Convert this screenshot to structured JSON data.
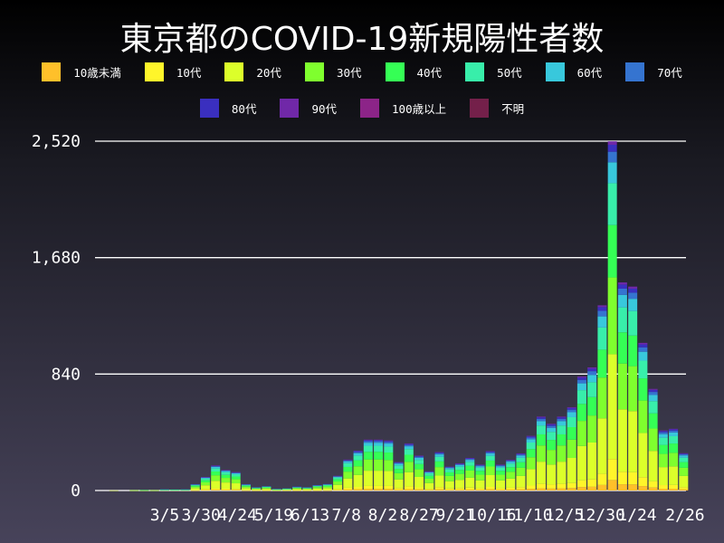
{
  "chart_data": {
    "type": "bar",
    "stacked": true,
    "title": "東京都のCOVID-19新規陽性者数",
    "xlabel": "",
    "ylabel": "",
    "ylim": [
      0,
      2520
    ],
    "y_ticks": [
      "0",
      "840",
      "1,680",
      "2,520"
    ],
    "y_tick_values": [
      0,
      840,
      1680,
      2520
    ],
    "x_tick_labels": [
      "3/5",
      "3/30",
      "4/24",
      "5/19",
      "6/13",
      "7/8",
      "8/2",
      "8/27",
      "9/21",
      "10/16",
      "11/10",
      "12/5",
      "12/30",
      "1/24",
      "2/26"
    ],
    "grid": true,
    "legend_position": "top",
    "x": [
      "2020-01-30",
      "2020-02-06",
      "2020-02-13",
      "2020-02-20",
      "2020-02-27",
      "2020-03-05",
      "2020-03-12",
      "2020-03-19",
      "2020-03-26",
      "2020-04-02",
      "2020-04-09",
      "2020-04-16",
      "2020-04-23",
      "2020-04-30",
      "2020-05-07",
      "2020-05-14",
      "2020-05-21",
      "2020-05-28",
      "2020-06-04",
      "2020-06-11",
      "2020-06-18",
      "2020-06-25",
      "2020-07-02",
      "2020-07-09",
      "2020-07-16",
      "2020-07-23",
      "2020-07-30",
      "2020-08-06",
      "2020-08-13",
      "2020-08-20",
      "2020-08-27",
      "2020-09-03",
      "2020-09-10",
      "2020-09-17",
      "2020-09-24",
      "2020-10-01",
      "2020-10-08",
      "2020-10-15",
      "2020-10-22",
      "2020-10-29",
      "2020-11-05",
      "2020-11-12",
      "2020-11-19",
      "2020-11-26",
      "2020-12-03",
      "2020-12-10",
      "2020-12-17",
      "2020-12-24",
      "2020-12-31",
      "2021-01-07",
      "2021-01-14",
      "2021-01-21",
      "2021-01-28",
      "2021-02-04",
      "2021-02-11",
      "2021-02-18",
      "2021-02-25"
    ],
    "series": [
      {
        "name": "10歳未満",
        "color": "#ffc02a",
        "values": [
          0,
          0,
          0,
          0,
          0,
          0,
          0,
          0,
          1,
          3,
          5,
          4,
          4,
          1,
          1,
          1,
          0,
          0,
          1,
          1,
          1,
          1,
          3,
          7,
          9,
          11,
          11,
          11,
          6,
          10,
          8,
          4,
          8,
          5,
          6,
          7,
          6,
          9,
          6,
          7,
          8,
          12,
          16,
          14,
          16,
          18,
          25,
          27,
          40,
          76,
          45,
          44,
          32,
          22,
          13,
          13,
          8
        ]
      },
      {
        "name": "10代",
        "color": "#fff52a",
        "values": [
          0,
          0,
          0,
          0,
          0,
          0,
          0,
          0,
          3,
          6,
          11,
          9,
          8,
          3,
          1,
          2,
          1,
          1,
          2,
          1,
          2,
          3,
          6,
          13,
          17,
          22,
          22,
          22,
          12,
          20,
          15,
          8,
          17,
          10,
          12,
          14,
          11,
          17,
          11,
          13,
          16,
          24,
          32,
          29,
          32,
          36,
          49,
          53,
          80,
          151,
          90,
          88,
          64,
          44,
          26,
          27,
          16
        ]
      },
      {
        "name": "20代",
        "color": "#dcff2a",
        "values": [
          1,
          0,
          1,
          1,
          1,
          2,
          2,
          2,
          14,
          29,
          54,
          45,
          40,
          14,
          7,
          9,
          3,
          5,
          8,
          7,
          12,
          14,
          32,
          67,
          86,
          110,
          110,
          108,
          62,
          102,
          75,
          42,
          83,
          52,
          59,
          71,
          56,
          85,
          56,
          66,
          81,
          118,
          160,
          144,
          160,
          181,
          247,
          266,
          401,
          756,
          451,
          441,
          319,
          220,
          130,
          134,
          81
        ]
      },
      {
        "name": "30代",
        "color": "#7fff2e",
        "values": [
          0,
          0,
          1,
          1,
          1,
          2,
          2,
          2,
          10,
          21,
          40,
          33,
          29,
          10,
          5,
          7,
          2,
          3,
          6,
          5,
          9,
          11,
          24,
          49,
          63,
          81,
          81,
          79,
          45,
          75,
          55,
          31,
          61,
          38,
          43,
          52,
          41,
          62,
          41,
          49,
          59,
          86,
          117,
          106,
          117,
          132,
          181,
          195,
          294,
          554,
          330,
          324,
          234,
          161,
          95,
          98,
          59
        ]
      },
      {
        "name": "40代",
        "color": "#35ff55",
        "values": [
          0,
          0,
          0,
          1,
          0,
          1,
          1,
          1,
          7,
          15,
          27,
          22,
          20,
          7,
          3,
          4,
          2,
          2,
          4,
          3,
          6,
          7,
          16,
          34,
          43,
          55,
          55,
          54,
          31,
          51,
          38,
          21,
          41,
          26,
          29,
          35,
          28,
          43,
          28,
          33,
          40,
          59,
          80,
          72,
          80,
          90,
          123,
          133,
          201,
          378,
          225,
          221,
          160,
          110,
          65,
          67,
          41
        ]
      },
      {
        "name": "50代",
        "color": "#38eeaa",
        "values": [
          0,
          0,
          0,
          0,
          0,
          1,
          1,
          1,
          6,
          12,
          22,
          18,
          16,
          6,
          3,
          4,
          1,
          2,
          3,
          3,
          5,
          6,
          13,
          27,
          34,
          44,
          44,
          43,
          25,
          41,
          30,
          17,
          33,
          21,
          23,
          28,
          22,
          34,
          22,
          27,
          32,
          47,
          64,
          58,
          64,
          72,
          99,
          107,
          160,
          302,
          180,
          177,
          128,
          88,
          52,
          53,
          32
        ]
      },
      {
        "name": "60代",
        "color": "#38c8dc",
        "values": [
          0,
          0,
          0,
          0,
          0,
          1,
          1,
          1,
          3,
          6,
          11,
          9,
          8,
          3,
          1,
          2,
          1,
          1,
          2,
          1,
          2,
          3,
          6,
          13,
          17,
          22,
          22,
          22,
          12,
          20,
          15,
          8,
          17,
          10,
          12,
          14,
          11,
          17,
          11,
          13,
          16,
          24,
          32,
          29,
          32,
          36,
          49,
          53,
          80,
          151,
          90,
          88,
          64,
          44,
          26,
          27,
          16
        ]
      },
      {
        "name": "70代",
        "color": "#3574d0",
        "values": [
          0,
          0,
          0,
          0,
          0,
          1,
          0,
          1,
          1,
          3,
          5,
          4,
          4,
          1,
          1,
          1,
          0,
          0,
          1,
          1,
          1,
          1,
          3,
          7,
          9,
          11,
          11,
          11,
          6,
          10,
          8,
          4,
          8,
          5,
          6,
          7,
          6,
          9,
          6,
          7,
          8,
          12,
          16,
          14,
          16,
          18,
          25,
          27,
          40,
          76,
          45,
          44,
          32,
          22,
          13,
          13,
          8
        ]
      },
      {
        "name": "80代",
        "color": "#3a2fbf",
        "values": [
          0,
          0,
          0,
          0,
          0,
          0,
          0,
          0,
          1,
          2,
          4,
          3,
          3,
          1,
          0,
          0,
          0,
          0,
          1,
          0,
          1,
          1,
          2,
          4,
          6,
          7,
          7,
          7,
          4,
          7,
          5,
          3,
          6,
          3,
          4,
          5,
          4,
          6,
          4,
          4,
          5,
          8,
          11,
          10,
          11,
          12,
          16,
          18,
          27,
          50,
          30,
          29,
          21,
          15,
          9,
          9,
          5
        ]
      },
      {
        "name": "90代",
        "color": "#7028a8",
        "values": [
          0,
          0,
          0,
          0,
          0,
          0,
          0,
          0,
          0,
          1,
          2,
          1,
          1,
          0,
          0,
          0,
          0,
          0,
          0,
          0,
          0,
          0,
          1,
          2,
          3,
          4,
          4,
          4,
          2,
          3,
          3,
          1,
          3,
          2,
          2,
          2,
          2,
          3,
          2,
          2,
          3,
          4,
          5,
          5,
          5,
          6,
          8,
          9,
          13,
          25,
          15,
          15,
          11,
          7,
          4,
          4,
          3
        ]
      },
      {
        "name": "100歳以上",
        "color": "#8c2488",
        "values": [
          0,
          0,
          0,
          0,
          0,
          0,
          0,
          0,
          0,
          0,
          0,
          0,
          0,
          0,
          0,
          0,
          0,
          0,
          0,
          0,
          0,
          0,
          0,
          0,
          0,
          0,
          0,
          0,
          0,
          0,
          0,
          0,
          0,
          0,
          0,
          0,
          0,
          0,
          0,
          0,
          0,
          0,
          0,
          0,
          0,
          0,
          0,
          0,
          0,
          0,
          0,
          0,
          0,
          0,
          0,
          0,
          0
        ]
      },
      {
        "name": "不明",
        "color": "#74204a",
        "values": [
          0,
          0,
          0,
          0,
          0,
          0,
          0,
          0,
          0,
          0,
          0,
          0,
          0,
          0,
          0,
          0,
          0,
          0,
          0,
          0,
          0,
          0,
          0,
          0,
          0,
          0,
          0,
          0,
          0,
          0,
          0,
          0,
          0,
          0,
          0,
          0,
          0,
          0,
          0,
          0,
          0,
          0,
          0,
          0,
          0,
          0,
          0,
          0,
          0,
          0,
          0,
          0,
          0,
          0,
          0,
          0,
          0
        ]
      }
    ]
  }
}
